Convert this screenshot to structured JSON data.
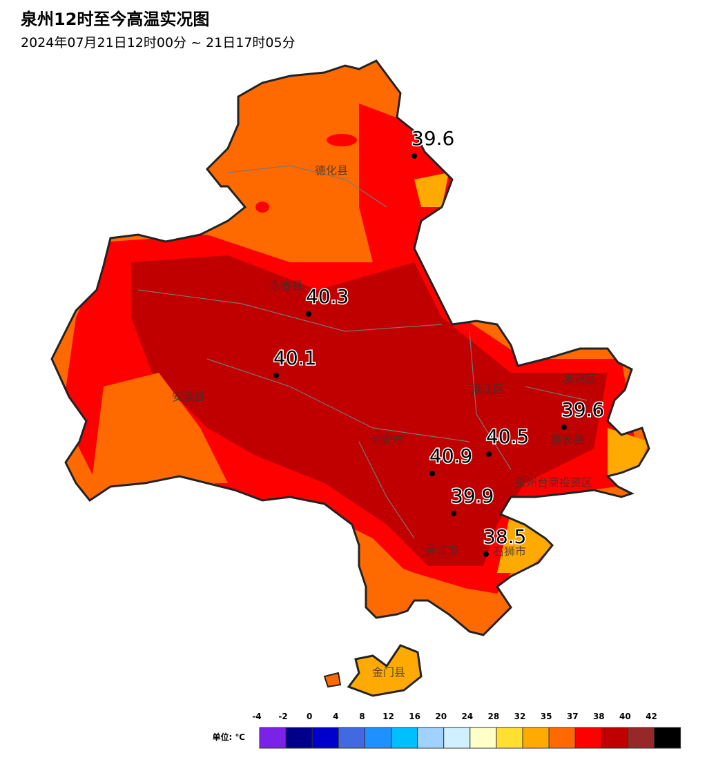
{
  "header": {
    "title": "泉州12时至今高温实况图",
    "subtitle": "2024年07月21日12时00分 ~ 21日17时05分"
  },
  "places": [
    "德化县",
    "永春县",
    "安溪县",
    "南安市",
    "洛江区",
    "泉港区",
    "惠安县",
    "泉州台商投资区",
    "晋江市",
    "石狮市",
    "金门县"
  ],
  "stations": [
    {
      "value": 39.6
    },
    {
      "value": 40.3
    },
    {
      "value": 40.1
    },
    {
      "value": 40.5
    },
    {
      "value": 40.9
    },
    {
      "value": 39.9
    },
    {
      "value": 38.5
    },
    {
      "value": 39.6
    }
  ],
  "legend": {
    "unit_label": "单位: ℃",
    "ticks": [
      -4,
      -2,
      0,
      4,
      8,
      12,
      16,
      20,
      24,
      28,
      32,
      35,
      37,
      38,
      40,
      42
    ],
    "colors": [
      "#7b22e8",
      "#00008b",
      "#0000cd",
      "#4169e1",
      "#1e90ff",
      "#00bfff",
      "#a0d2ff",
      "#d0f0ff",
      "#ffffc8",
      "#ffe030",
      "#ffaa00",
      "#ff6a00",
      "#ff0000",
      "#c00000",
      "#962828",
      "#000000"
    ]
  }
}
